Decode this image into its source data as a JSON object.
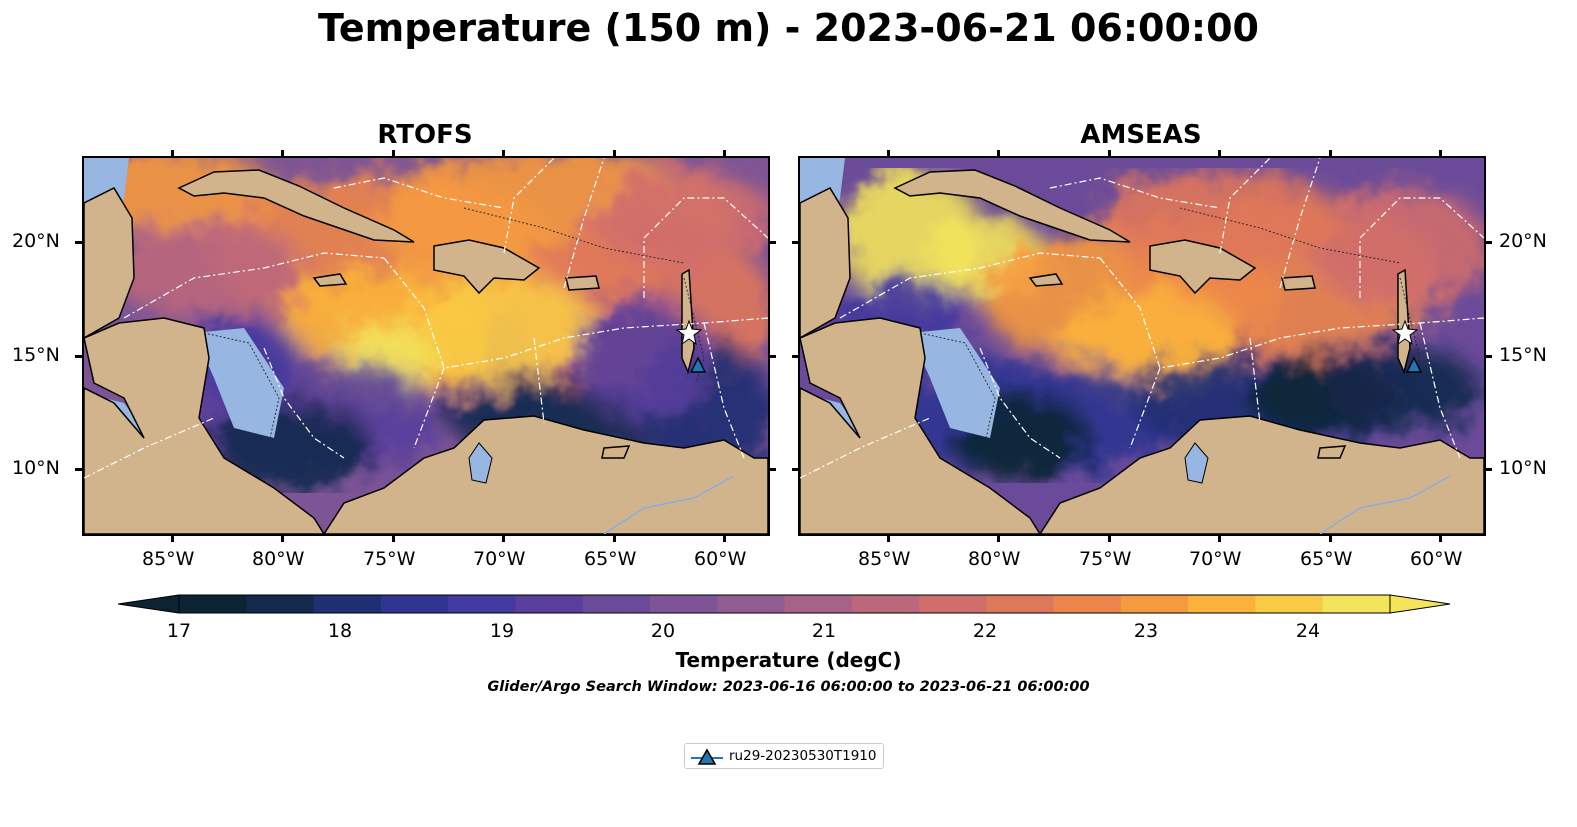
{
  "figure": {
    "title": "Temperature (150 m) - 2023-06-21 06:00:00",
    "panels": [
      {
        "title": "RTOFS"
      },
      {
        "title": "AMSEAS"
      }
    ],
    "longitude_ticks": [
      "85°W",
      "80°W",
      "75°W",
      "70°W",
      "65°W",
      "60°W"
    ],
    "latitude_ticks": [
      "20°N",
      "15°N",
      "10°N"
    ],
    "colorbar": {
      "label": "Temperature (degC)",
      "ticks": [
        "17",
        "18",
        "19",
        "20",
        "21",
        "22",
        "23",
        "24"
      ],
      "range": [
        16.5,
        24.5
      ],
      "colors": [
        "#0b2333",
        "#13294d",
        "#1f2f72",
        "#2f3591",
        "#44399f",
        "#583f9c",
        "#6b4b99",
        "#7d5495",
        "#915c8f",
        "#a66287",
        "#bb677c",
        "#cf6d6d",
        "#df775b",
        "#ec864a",
        "#f69a3f",
        "#fbb23b",
        "#f9cb45",
        "#f3e45b"
      ]
    },
    "search_window": "Glider/Argo Search Window: 2023-06-16 06:00:00 to 2023-06-21 06:00:00",
    "legend": {
      "label": "ru29-20230530T1910"
    },
    "colors": {
      "land": "#d2b48c",
      "shelf": "#97b6e1",
      "eez": "#ffffff",
      "glider": "#1f77b4"
    }
  }
}
